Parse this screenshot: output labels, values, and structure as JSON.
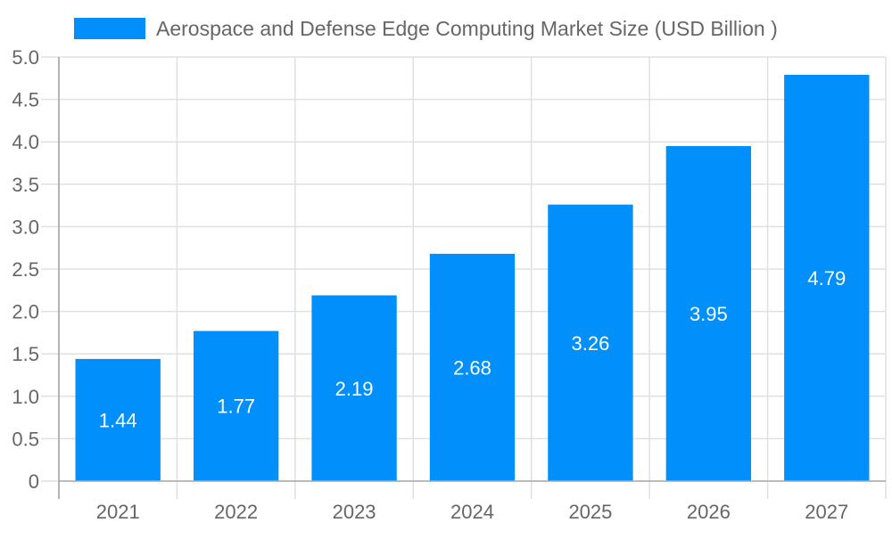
{
  "chart_data": {
    "type": "bar",
    "title": "",
    "xlabel": "",
    "ylabel": "",
    "categories": [
      "2021",
      "2022",
      "2023",
      "2024",
      "2025",
      "2026",
      "2027"
    ],
    "series": [
      {
        "name": "Aerospace and Defense Edge Computing Market Size (USD Billion )",
        "values": [
          1.44,
          1.77,
          2.19,
          2.68,
          3.26,
          3.95,
          4.79
        ],
        "labels": [
          "1.44",
          "1.77",
          "2.19",
          "2.68",
          "3.26",
          "3.95",
          "4.79"
        ],
        "color": "#008ffb"
      }
    ],
    "ylim": [
      0,
      5
    ],
    "yticks": [
      "0",
      "0.5",
      "1.0",
      "1.5",
      "2.0",
      "2.5",
      "3.0",
      "3.5",
      "4.0",
      "4.5",
      "5.0"
    ],
    "grid": true,
    "legend": "top"
  }
}
